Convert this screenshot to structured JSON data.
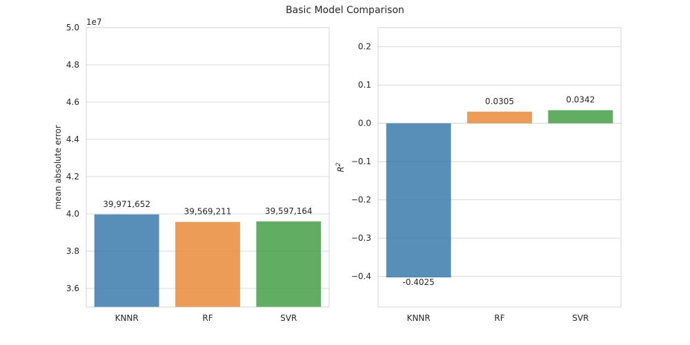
{
  "title": "Basic Model Comparison",
  "colors": {
    "KNNR": "#3a7bab",
    "RF": "#e98b39",
    "SVR": "#45a046",
    "grid": "#cccccc"
  },
  "chart_data": [
    {
      "type": "bar",
      "categories": [
        "KNNR",
        "RF",
        "SVR"
      ],
      "values": [
        39971652,
        39569211,
        39597164
      ],
      "value_labels": [
        "39,971,652",
        "39,569,211",
        "39,597,164"
      ],
      "ylabel": "mean absolute error",
      "offset_text": "1e7",
      "ylim": [
        35000000,
        50000000
      ],
      "yticks": [
        36000000,
        38000000,
        40000000,
        42000000,
        44000000,
        46000000,
        48000000,
        50000000
      ],
      "ytick_labels": [
        "3.6",
        "3.8",
        "4.0",
        "4.2",
        "4.4",
        "4.6",
        "4.8",
        "5.0"
      ],
      "grid": true
    },
    {
      "type": "bar",
      "categories": [
        "KNNR",
        "RF",
        "SVR"
      ],
      "values": [
        -0.4025,
        0.0305,
        0.0342
      ],
      "value_labels": [
        "-0.4025",
        "0.0305",
        "0.0342"
      ],
      "ylabel": "R²",
      "ylim": [
        -0.48,
        0.25
      ],
      "yticks": [
        -0.4,
        -0.3,
        -0.2,
        -0.1,
        0.0,
        0.1,
        0.2
      ],
      "ytick_labels": [
        "−0.4",
        "−0.3",
        "−0.2",
        "−0.1",
        "0.0",
        "0.1",
        "0.2"
      ],
      "grid": true
    }
  ]
}
